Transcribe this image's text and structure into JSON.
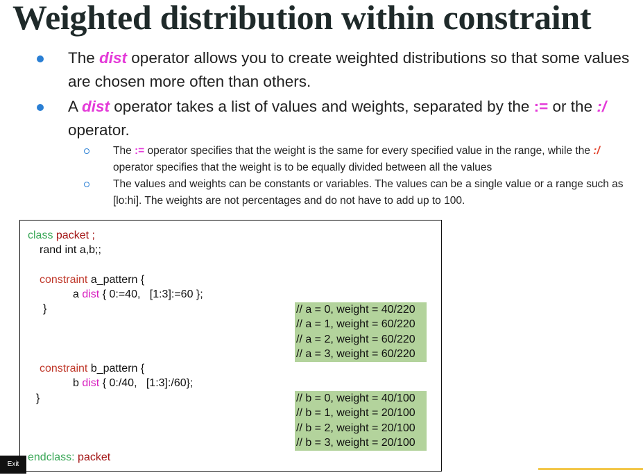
{
  "title": "Weighted distribution within constraint",
  "bullets": [
    {
      "parts": [
        {
          "text": "The "
        },
        {
          "text": "dist",
          "color": "#e43ad8",
          "italic": true,
          "bold": true
        },
        {
          "text": " operator allows you to create weighted distributions so that some values are chosen more often than others."
        }
      ]
    },
    {
      "parts": [
        {
          "text": "A "
        },
        {
          "text": "dist",
          "color": "#e43ad8",
          "italic": true,
          "bold": true
        },
        {
          "text": " operator takes a list of values and weights, separated by the "
        },
        {
          "text": ":=",
          "color": "#e43ad8",
          "bold": true
        },
        {
          "text": " or the "
        },
        {
          "text": ":/",
          "color": "#e43ad8",
          "bold": true,
          "italic": true
        },
        {
          "text": " operator."
        }
      ],
      "sub": [
        {
          "parts": [
            {
              "text": "The "
            },
            {
              "text": ":=",
              "color": "#e43ad8",
              "bold": true
            },
            {
              "text": " operator specifies that the weight is the same for every specified value in the range, while the "
            },
            {
              "text": ":/",
              "color": "#e2452f",
              "bold": true,
              "italic": true
            },
            {
              "text": " operator specifies that the weight is to be equally divided between all the values"
            }
          ]
        },
        {
          "parts": [
            {
              "text": "The values and weights can be constants or variables. The values can be a single value or a range such as [lo:hi]. The weights are not percentages and do not have to add up to 100."
            }
          ]
        }
      ]
    }
  ],
  "code": [
    {
      "parts": [
        {
          "text": "class",
          "color": "#3aa757"
        },
        {
          "text": " "
        },
        {
          "text": "packet ;",
          "color": "#a31515"
        }
      ]
    },
    {
      "parts": [
        {
          "text": "rand int a,b;;"
        }
      ]
    },
    {
      "parts": [
        {
          "text": "constraint",
          "color": "#c0392b"
        },
        {
          "text": " a_pattern {"
        }
      ]
    },
    {
      "parts": [
        {
          "text": "a "
        },
        {
          "text": "dist",
          "color": "#d81fc0"
        },
        {
          "text": " { 0:=40,   [1:3]:=60 };"
        }
      ]
    },
    {
      "parts": [
        {
          "text": "}"
        }
      ]
    },
    {
      "parts": [
        {
          "text": "constraint",
          "color": "#c0392b"
        },
        {
          "text": " b_pattern {"
        }
      ]
    },
    {
      "parts": [
        {
          "text": "b "
        },
        {
          "text": "dist",
          "color": "#d81fc0"
        },
        {
          "text": " { 0:/40,   [1:3]:/60};"
        }
      ]
    },
    {
      "parts": [
        {
          "text": "}"
        }
      ]
    },
    {
      "parts": [
        {
          "text": "endclass:",
          "color": "#3aa757"
        },
        {
          "text": " "
        },
        {
          "text": "packet",
          "color": "#a31515"
        }
      ]
    }
  ],
  "comments": [
    [
      "// a = 0, weight = 40/220",
      "// a = 1, weight = 60/220",
      "// a = 2, weight = 60/220",
      "// a = 3, weight = 60/220"
    ],
    [
      "// b = 0, weight = 40/100",
      "// b = 1, weight = 20/100",
      "// b = 2, weight = 20/100",
      "// b = 3, weight = 20/100"
    ]
  ],
  "exit_button": "Exit"
}
